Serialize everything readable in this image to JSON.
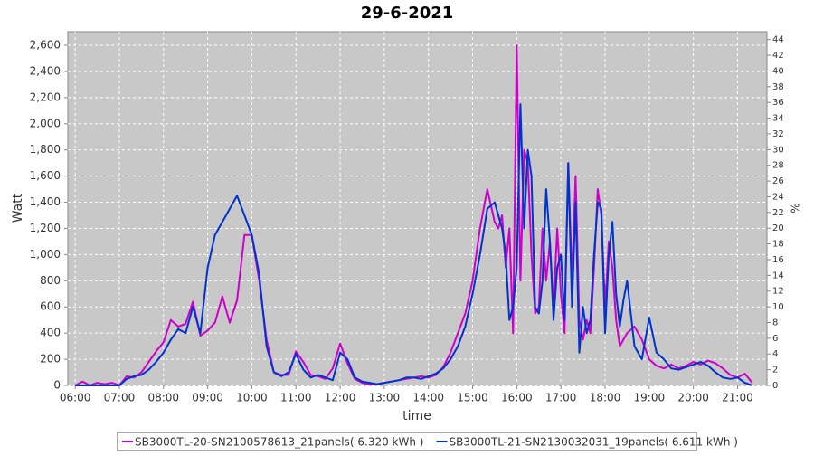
{
  "chart_data": {
    "type": "line",
    "title": "29-6-2021",
    "x_label": "time",
    "y_label": "Watt",
    "y2_label": "%",
    "x": [
      "06:00",
      "06:10",
      "06:20",
      "06:30",
      "06:40",
      "06:50",
      "07:00",
      "07:10",
      "07:20",
      "07:30",
      "07:40",
      "07:50",
      "08:00",
      "08:10",
      "08:20",
      "08:30",
      "08:40",
      "08:50",
      "09:00",
      "09:10",
      "09:20",
      "09:30",
      "09:40",
      "09:50",
      "10:00",
      "10:10",
      "10:20",
      "10:30",
      "10:40",
      "10:50",
      "11:00",
      "11:10",
      "11:20",
      "11:30",
      "11:40",
      "11:50",
      "12:00",
      "12:10",
      "12:20",
      "12:30",
      "12:40",
      "12:50",
      "13:00",
      "13:10",
      "13:20",
      "13:30",
      "13:40",
      "13:50",
      "14:00",
      "14:10",
      "14:20",
      "14:30",
      "14:40",
      "14:50",
      "15:00",
      "15:10",
      "15:20",
      "15:30",
      "15:35",
      "15:40",
      "15:45",
      "15:50",
      "15:55",
      "16:00",
      "16:05",
      "16:10",
      "16:15",
      "16:20",
      "16:25",
      "16:30",
      "16:35",
      "16:40",
      "16:45",
      "16:50",
      "16:55",
      "17:00",
      "17:05",
      "17:10",
      "17:15",
      "17:20",
      "17:25",
      "17:30",
      "17:35",
      "17:40",
      "17:45",
      "17:50",
      "17:55",
      "18:00",
      "18:05",
      "18:10",
      "18:15",
      "18:20",
      "18:25",
      "18:30",
      "18:40",
      "18:50",
      "19:00",
      "19:10",
      "19:20",
      "19:30",
      "19:40",
      "19:50",
      "20:00",
      "20:10",
      "20:20",
      "20:30",
      "20:40",
      "20:50",
      "21:00",
      "21:10",
      "21:20"
    ],
    "series": [
      {
        "name": "SB3000TL-20-SN2100578613_21panels( 6.320 kWh )",
        "color": "#cc00cc",
        "values": [
          0,
          30,
          0,
          20,
          10,
          20,
          0,
          70,
          60,
          100,
          180,
          260,
          330,
          500,
          450,
          470,
          640,
          380,
          420,
          480,
          680,
          480,
          650,
          1150,
          1150,
          800,
          350,
          100,
          80,
          80,
          260,
          180,
          80,
          70,
          50,
          130,
          320,
          170,
          50,
          20,
          10,
          10,
          20,
          30,
          40,
          50,
          60,
          70,
          60,
          80,
          140,
          250,
          400,
          550,
          800,
          1200,
          1500,
          1250,
          1200,
          1300,
          900,
          1200,
          400,
          2600,
          800,
          1800,
          1700,
          1000,
          550,
          600,
          1200,
          800,
          1100,
          600,
          1200,
          700,
          400,
          1700,
          800,
          1600,
          500,
          350,
          500,
          400,
          900,
          1500,
          1300,
          600,
          1100,
          900,
          500,
          300,
          350,
          400,
          450,
          350,
          200,
          150,
          130,
          160,
          130,
          150,
          180,
          160,
          190,
          170,
          130,
          80,
          60,
          90,
          20
        ]
      },
      {
        "name": "SB3000TL-21-SN2130032031_19panels( 6.611 kWh )",
        "color": "#0033cc",
        "values": [
          0,
          0,
          0,
          0,
          0,
          0,
          0,
          50,
          70,
          80,
          120,
          180,
          250,
          350,
          430,
          400,
          600,
          400,
          900,
          1150,
          1250,
          1350,
          1450,
          1300,
          1150,
          850,
          300,
          100,
          70,
          100,
          240,
          120,
          60,
          80,
          60,
          40,
          250,
          200,
          60,
          30,
          20,
          10,
          20,
          30,
          40,
          60,
          60,
          50,
          70,
          90,
          130,
          200,
          300,
          450,
          700,
          1000,
          1350,
          1400,
          1300,
          1200,
          1000,
          500,
          600,
          900,
          2150,
          1200,
          1800,
          1600,
          600,
          550,
          800,
          1500,
          1100,
          500,
          900,
          1000,
          500,
          1700,
          600,
          1400,
          250,
          600,
          400,
          500,
          1000,
          1400,
          1350,
          400,
          1000,
          1250,
          700,
          450,
          650,
          800,
          300,
          200,
          520,
          250,
          200,
          130,
          120,
          140,
          160,
          180,
          150,
          100,
          60,
          50,
          60,
          20,
          0
        ]
      }
    ],
    "xlim": [
      "05:50",
      "21:40"
    ],
    "xticks": [
      "06:00",
      "07:00",
      "08:00",
      "09:00",
      "10:00",
      "11:00",
      "12:00",
      "13:00",
      "14:00",
      "15:00",
      "16:00",
      "17:00",
      "18:00",
      "19:00",
      "20:00",
      "21:00"
    ],
    "ylim": [
      0,
      2704
    ],
    "yticks": [
      0,
      200,
      400,
      600,
      800,
      {
        "value": 1000,
        "label": "1,000"
      },
      {
        "value": 1200,
        "label": "1,200"
      },
      {
        "value": 1400,
        "label": "1,400"
      },
      {
        "value": 1600,
        "label": "1,600"
      },
      {
        "value": 1800,
        "label": "1,800"
      },
      {
        "value": 2000,
        "label": "2,000"
      },
      {
        "value": 2200,
        "label": "2,200"
      },
      {
        "value": 2400,
        "label": "2,400"
      },
      {
        "value": 2600,
        "label": "2,600"
      }
    ],
    "y2lim": [
      0,
      45
    ],
    "y2ticks": [
      0,
      2,
      4,
      6,
      8,
      10,
      12,
      14,
      16,
      18,
      20,
      22,
      24,
      26,
      28,
      30,
      32,
      34,
      36,
      38,
      40,
      42,
      44
    ],
    "grid": true,
    "legend": "bottom"
  }
}
